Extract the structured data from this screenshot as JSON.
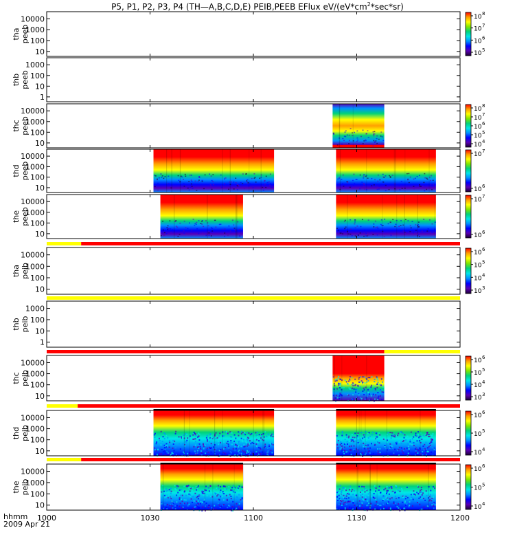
{
  "title": {
    "prefix": "P5, P1, P2, P3, P4 (TH—A,B,C,D,E) PEIB,PEEB EFlux eV/(eV*cm",
    "sup": "2",
    "suffix": "*sec*sr)"
  },
  "footer": {
    "time_label": "hhmm",
    "date": "2009 Apr 21"
  },
  "colors": {
    "mode_fast": "#ff0000",
    "mode_slow": "#ffff00",
    "colormap": [
      "#1a0033",
      "#5a00b4",
      "#0000ff",
      "#0090ff",
      "#00e6e6",
      "#00d27a",
      "#7fe600",
      "#ffff00",
      "#ffa000",
      "#ff0000"
    ]
  },
  "chart_data": {
    "type": "heatmap",
    "x_axis": {
      "start": "10:00",
      "end": "12:00",
      "ticks": [
        "1000",
        "1030",
        "1100",
        "1130",
        "1200"
      ]
    },
    "panels": [
      {
        "id": "tha-peeb",
        "label_top": "tha",
        "label_bottom": "peeb",
        "yticks": [
          "10",
          "100",
          "1000",
          "10000"
        ],
        "scale": "log",
        "colorbar": [
          "10",
          "10",
          "10",
          "10"
        ],
        "colorbar_exp": [
          "5",
          "6",
          "7",
          "8"
        ],
        "intervals": []
      },
      {
        "id": "thb-peeb",
        "label_top": "thb",
        "label_bottom": "peeb",
        "yticks": [
          "1",
          "10",
          "100",
          "1000"
        ],
        "scale": "log",
        "colorbar": [],
        "colorbar_exp": [],
        "intervals": []
      },
      {
        "id": "thc-peeb",
        "label_top": "thc",
        "label_bottom": "peeb",
        "yticks": [
          "10",
          "100",
          "1000",
          "10000"
        ],
        "scale": "log",
        "colorbar": [
          "10",
          "10",
          "10",
          "10",
          "10"
        ],
        "colorbar_exp": [
          "4",
          "5",
          "6",
          "7",
          "8"
        ],
        "intervals": [
          {
            "start": "11:23",
            "end": "11:38",
            "style": "peeb-c"
          }
        ]
      },
      {
        "id": "thd-peeb",
        "label_top": "thd",
        "label_bottom": "peeb",
        "yticks": [
          "10",
          "100",
          "1000",
          "10000"
        ],
        "scale": "log",
        "colorbar": [
          "10",
          "10"
        ],
        "colorbar_exp": [
          "6",
          "7"
        ],
        "intervals": [
          {
            "start": "10:31",
            "end": "11:06",
            "style": "peeb"
          },
          {
            "start": "11:24",
            "end": "11:53",
            "style": "peeb"
          }
        ]
      },
      {
        "id": "the-peeb",
        "label_top": "the",
        "label_bottom": "peeb",
        "yticks": [
          "10",
          "100",
          "1000",
          "10000"
        ],
        "scale": "log",
        "colorbar": [
          "10",
          "10"
        ],
        "colorbar_exp": [
          "6",
          "7"
        ],
        "intervals": [
          {
            "start": "10:33",
            "end": "10:57",
            "style": "peeb"
          },
          {
            "start": "11:24",
            "end": "11:53",
            "style": "peeb"
          }
        ]
      },
      {
        "id": "tha-peib",
        "label_top": "tha",
        "label_bottom": "peib",
        "yticks": [
          "10",
          "100",
          "1000",
          "10000"
        ],
        "scale": "log",
        "colorbar": [
          "10",
          "10",
          "10",
          "10"
        ],
        "colorbar_exp": [
          "3",
          "4",
          "5",
          "6"
        ],
        "mode_bar": [
          {
            "start": "10:00",
            "end": "10:10",
            "mode": "slow"
          },
          {
            "start": "10:10",
            "end": "12:00",
            "mode": "fast"
          }
        ],
        "intervals": []
      },
      {
        "id": "thb-peib",
        "label_top": "thb",
        "label_bottom": "peib",
        "yticks": [
          "1",
          "10",
          "100",
          "1000"
        ],
        "scale": "log",
        "colorbar": [],
        "colorbar_exp": [],
        "mode_bar": [
          {
            "start": "10:00",
            "end": "12:00",
            "mode": "slow"
          }
        ],
        "intervals": []
      },
      {
        "id": "thc-peib",
        "label_top": "thc",
        "label_bottom": "peib",
        "yticks": [
          "10",
          "100",
          "1000",
          "10000"
        ],
        "scale": "log",
        "colorbar": [
          "10",
          "10",
          "10",
          "10"
        ],
        "colorbar_exp": [
          "3",
          "4",
          "5",
          "6"
        ],
        "mode_bar": [
          {
            "start": "10:00",
            "end": "11:38",
            "mode": "fast"
          },
          {
            "start": "11:38",
            "end": "12:00",
            "mode": "slow"
          }
        ],
        "intervals": [
          {
            "start": "11:23",
            "end": "11:38",
            "style": "peib-c"
          }
        ]
      },
      {
        "id": "thd-peib",
        "label_top": "thd",
        "label_bottom": "peib",
        "yticks": [
          "10",
          "100",
          "1000",
          "10000"
        ],
        "scale": "log",
        "colorbar": [
          "10",
          "10",
          "10"
        ],
        "colorbar_exp": [
          "4",
          "5",
          "6"
        ],
        "mode_bar": [
          {
            "start": "10:00",
            "end": "10:09",
            "mode": "slow"
          },
          {
            "start": "10:09",
            "end": "12:00",
            "mode": "fast"
          }
        ],
        "intervals": [
          {
            "start": "10:31",
            "end": "11:06",
            "style": "peib"
          },
          {
            "start": "11:24",
            "end": "11:53",
            "style": "peib"
          }
        ]
      },
      {
        "id": "the-peib",
        "label_top": "the",
        "label_bottom": "peib",
        "yticks": [
          "10",
          "100",
          "1000",
          "10000"
        ],
        "scale": "log",
        "colorbar": [
          "10",
          "10",
          "10"
        ],
        "colorbar_exp": [
          "4",
          "5",
          "6"
        ],
        "mode_bar": [
          {
            "start": "10:00",
            "end": "10:10",
            "mode": "slow"
          },
          {
            "start": "10:10",
            "end": "12:00",
            "mode": "fast"
          }
        ],
        "intervals": [
          {
            "start": "10:33",
            "end": "10:57",
            "style": "peib"
          },
          {
            "start": "11:24",
            "end": "11:53",
            "style": "peib"
          }
        ]
      }
    ]
  }
}
